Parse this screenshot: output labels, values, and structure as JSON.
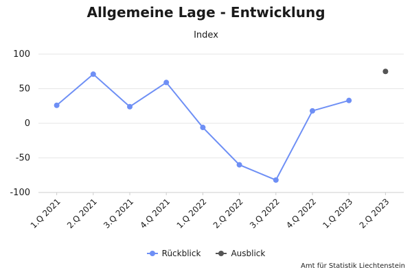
{
  "colors": {
    "rueckblick": "#6e8ff5",
    "ausblick": "#555555",
    "grid": "#e6e6e6",
    "axis": "#cccccc"
  },
  "chart_data": {
    "type": "line",
    "title": "Allgemeine Lage - Entwicklung",
    "ylabel": "Index",
    "xlabel": "",
    "categories": [
      "1.Q 2021",
      "2.Q 2021",
      "3.Q 2021",
      "4.Q 2021",
      "1.Q 2022",
      "2.Q 2022",
      "3.Q 2022",
      "4.Q 2022",
      "1.Q 2023",
      "2.Q 2023"
    ],
    "ylim": [
      -100,
      100
    ],
    "yticks": [
      -100,
      -50,
      0,
      50,
      100
    ],
    "ytick_labels": [
      "-100",
      "-50",
      "0",
      "50",
      "100"
    ],
    "grid": true,
    "legend_position": "bottom",
    "series": [
      {
        "name": "Rückblick",
        "values": [
          26,
          71,
          24,
          59,
          -6,
          -60,
          -82,
          18,
          33,
          null
        ]
      },
      {
        "name": "Ausblick",
        "values": [
          null,
          null,
          null,
          null,
          null,
          null,
          null,
          null,
          null,
          75
        ]
      }
    ]
  },
  "credit": "Amt für Statistik Liechtenstein"
}
